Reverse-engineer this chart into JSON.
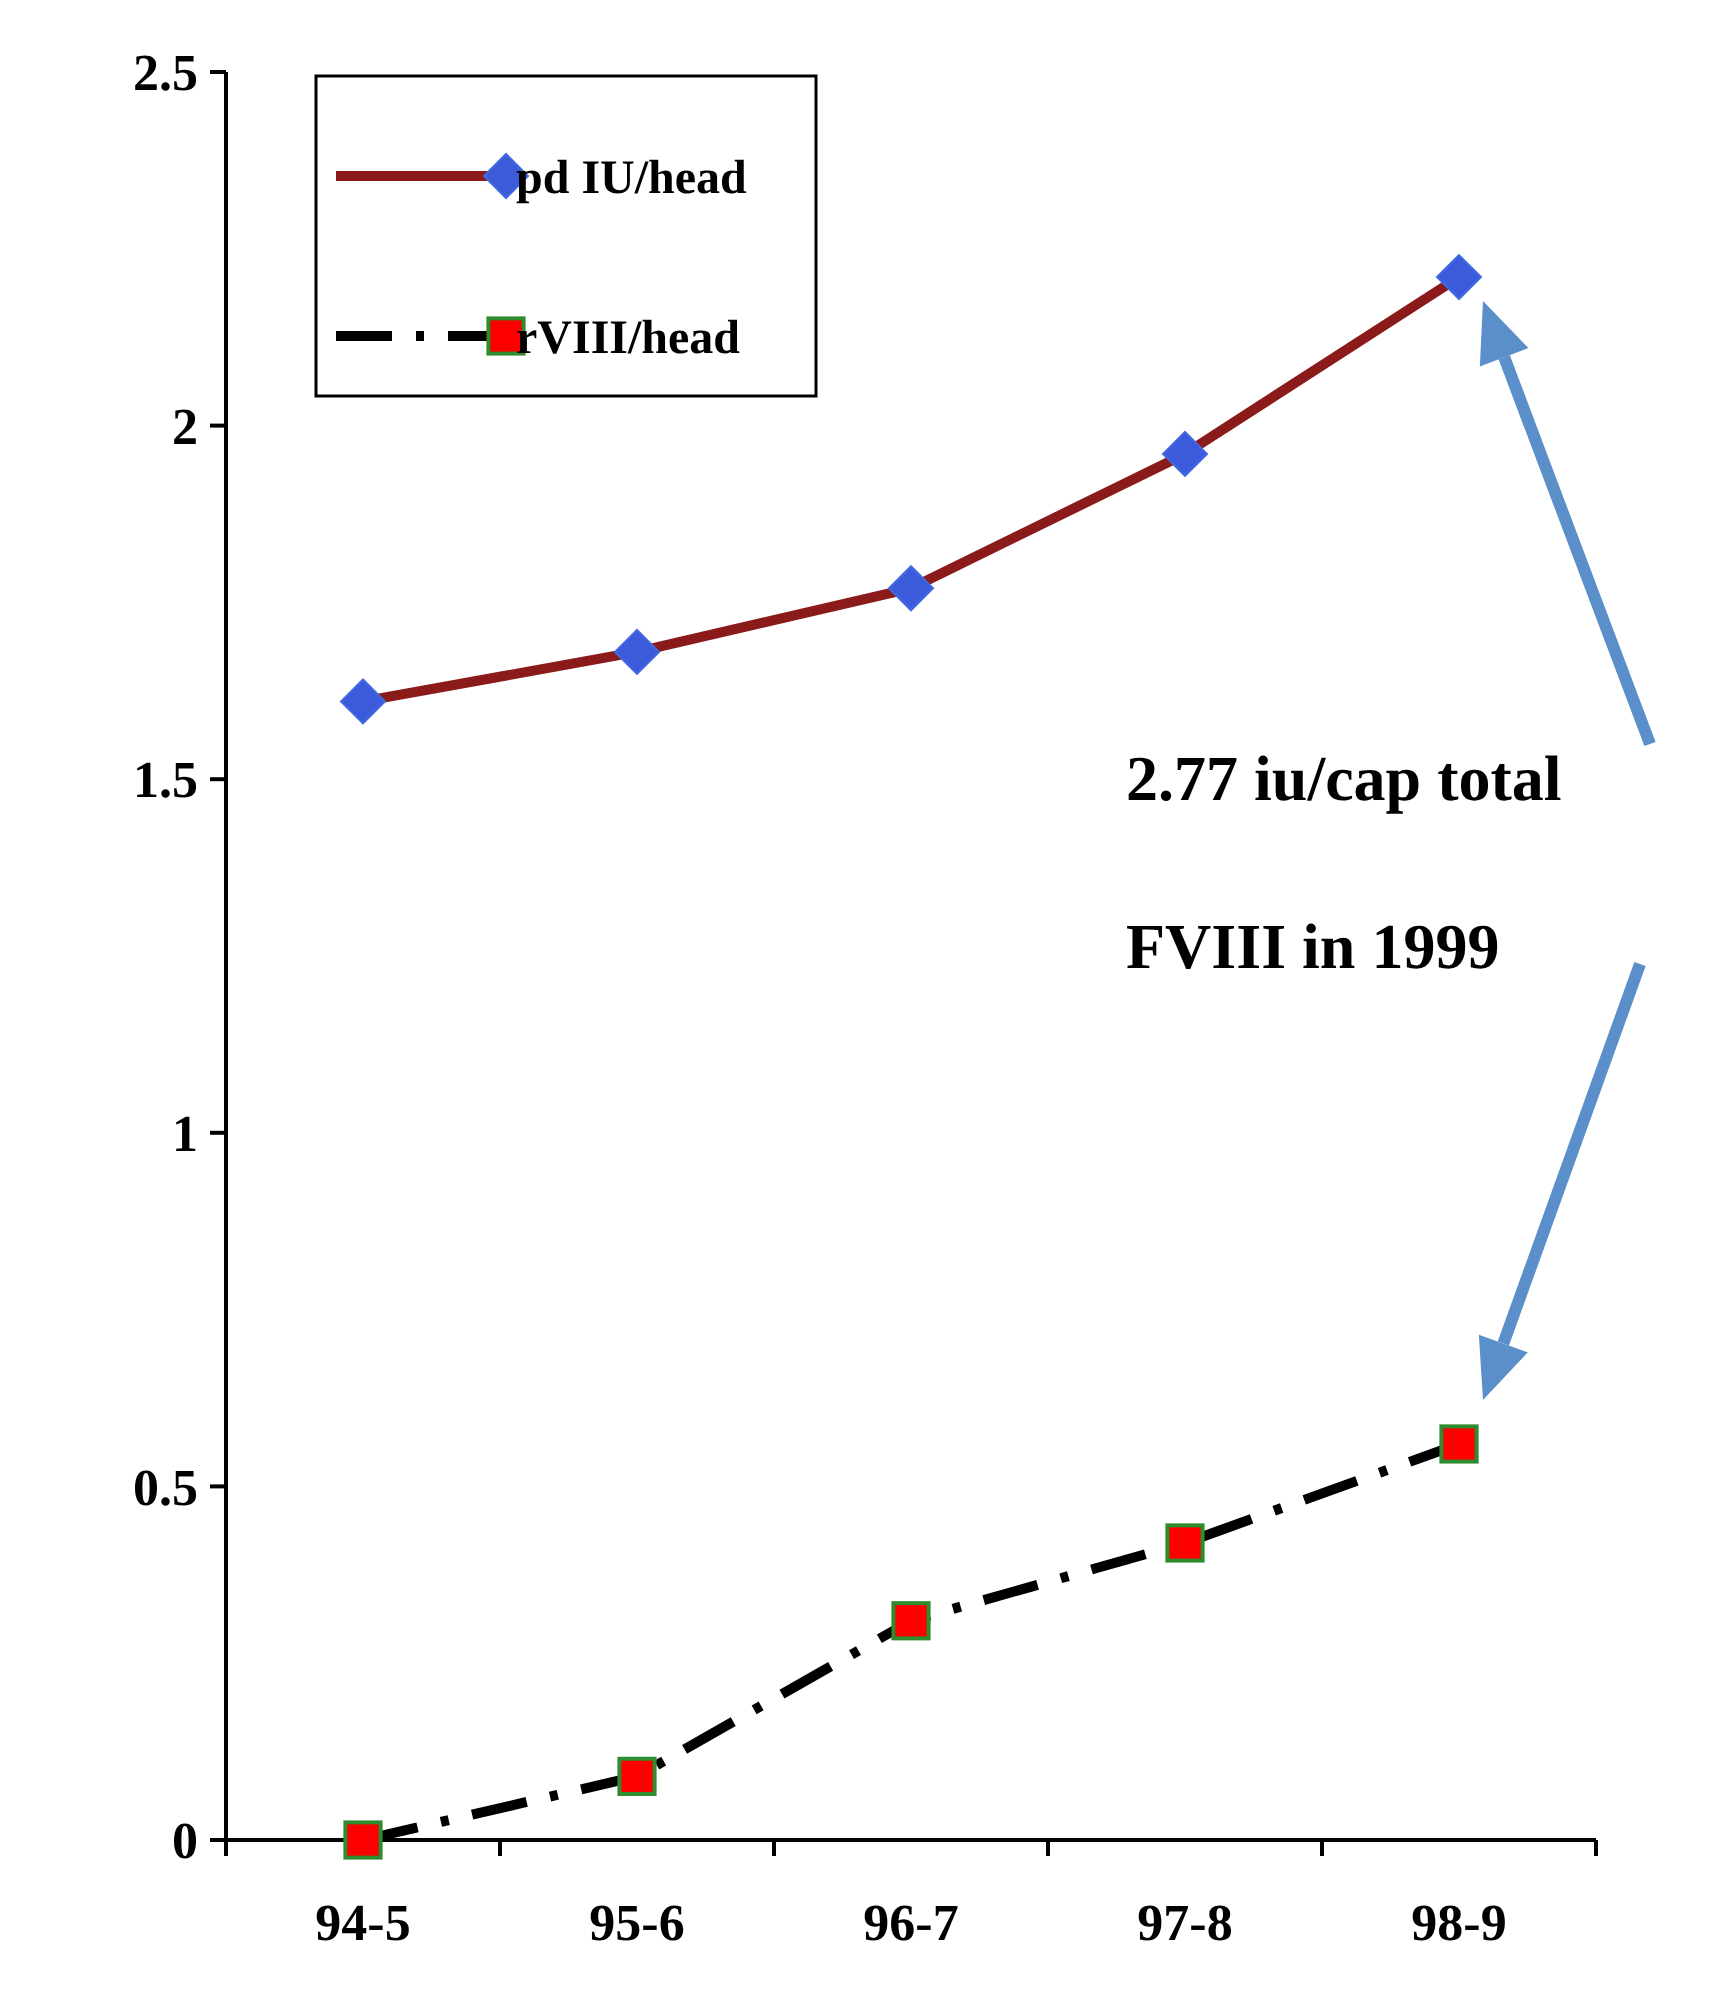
{
  "chart_data": {
    "type": "line",
    "categories": [
      "94-5",
      "95-6",
      "96-7",
      "97-8",
      "98-9"
    ],
    "series": [
      {
        "name": "pd IU/head",
        "color": "#8b1a1a",
        "values": [
          1.61,
          1.68,
          1.77,
          1.96,
          2.21
        ],
        "marker": "diamond",
        "line_style": "solid"
      },
      {
        "name": "rVIII/head",
        "color": "#000000",
        "values": [
          0.0,
          0.09,
          0.31,
          0.42,
          0.56
        ],
        "marker": "square",
        "line_style": "dashdot"
      }
    ],
    "ylim": [
      0,
      2.5
    ],
    "yticks": [
      0,
      0.5,
      1,
      1.5,
      2,
      2.5
    ],
    "grid": false,
    "legend": "top left",
    "annotations": [
      "2.77 iu/cap total FVIII in 1999"
    ]
  }
}
